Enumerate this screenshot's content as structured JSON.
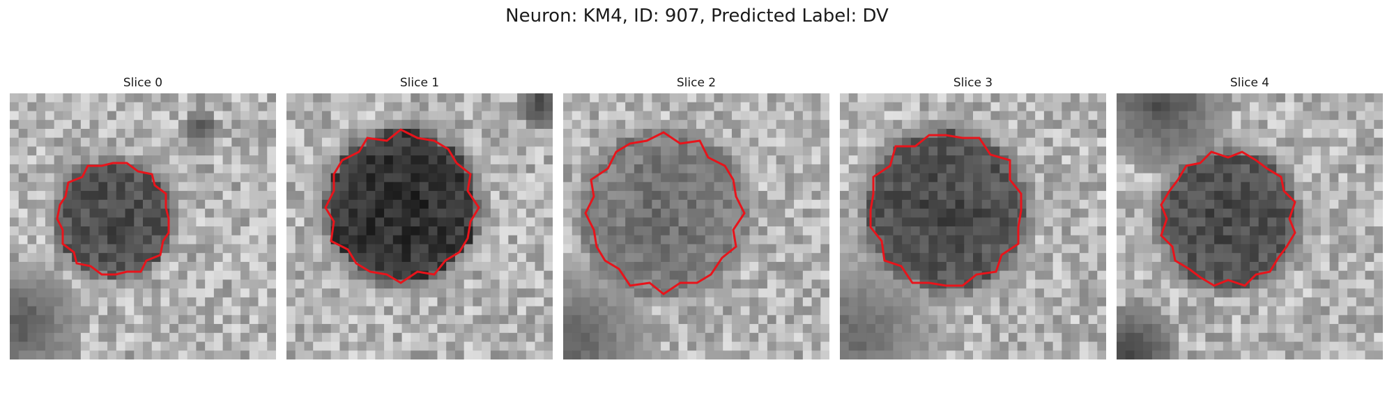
{
  "figure": {
    "title": "Neuron: KM4, ID: 907, Predicted Label: DV",
    "contour_color": "#e8141b",
    "colormap": "gray",
    "panels": [
      {
        "title": "Slice 0",
        "blob_intensity": "dark",
        "background": "mottled light gray with dark corner"
      },
      {
        "title": "Slice 1",
        "blob_intensity": "very dark",
        "background": "mottled light gray"
      },
      {
        "title": "Slice 2",
        "blob_intensity": "medium gray",
        "background": "light gray with dark bottom-left"
      },
      {
        "title": "Slice 3",
        "blob_intensity": "dark",
        "background": "light gray with dark bottom-left"
      },
      {
        "title": "Slice 4",
        "blob_intensity": "dark",
        "background": "mottled light gray with dark top-left"
      }
    ]
  }
}
